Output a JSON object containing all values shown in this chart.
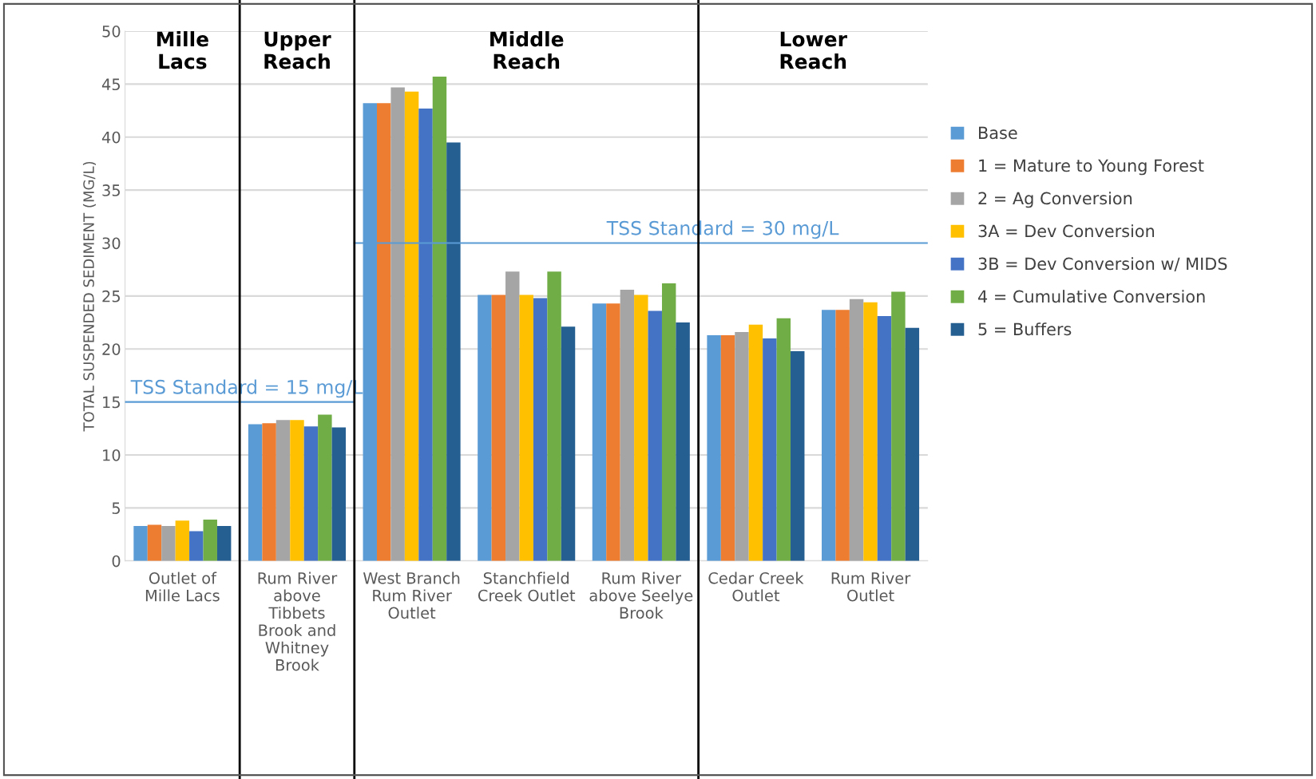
{
  "chart_data": {
    "type": "bar",
    "categories": [
      "Outlet of Mille Lacs",
      "Rum River above Tibbets Brook and Whitney Brook",
      "West Branch Rum River Outlet",
      "Stanchfield Creek Outlet",
      "Rum River above Seelye Brook",
      "Cedar Creek Outlet",
      "Rum River Outlet"
    ],
    "ylabel": "TOTAL SUSPENDED SEDIMENT (MG/L)",
    "series": [
      {
        "name": "Base",
        "color": "#5b9bd5",
        "values": [
          3.3,
          12.9,
          43.2,
          25.1,
          24.3,
          21.3,
          23.7
        ]
      },
      {
        "name": "1 = Mature to Young Forest",
        "color": "#ed7d31",
        "values": [
          3.4,
          13.0,
          43.2,
          25.1,
          24.3,
          21.3,
          23.7
        ]
      },
      {
        "name": "2 = Ag Conversion",
        "color": "#a5a5a5",
        "values": [
          3.3,
          13.3,
          44.7,
          27.3,
          25.6,
          21.6,
          24.7
        ]
      },
      {
        "name": "3A = Dev Conversion",
        "color": "#ffc000",
        "values": [
          3.8,
          13.3,
          44.3,
          25.1,
          25.1,
          22.3,
          24.4
        ]
      },
      {
        "name": "3B = Dev Conversion w/ MIDS",
        "color": "#4472c4",
        "values": [
          2.8,
          12.7,
          42.7,
          24.8,
          23.6,
          21.0,
          23.1
        ]
      },
      {
        "name": "4 = Cumulative Conversion",
        "color": "#70ad47",
        "values": [
          3.9,
          13.8,
          45.7,
          27.3,
          26.2,
          22.9,
          25.4
        ]
      },
      {
        "name": "5 = Buffers",
        "color": "#255e91",
        "values": [
          3.3,
          12.6,
          39.5,
          22.1,
          22.5,
          19.8,
          22.0
        ]
      }
    ],
    "ylim": [
      0,
      50
    ],
    "yticks": [
      0,
      5,
      10,
      15,
      20,
      25,
      30,
      35,
      40,
      45,
      50
    ],
    "ref_lines": [
      {
        "axis": "y",
        "value": 15,
        "label": "TSS Standard = 15 mg/L",
        "color": "#5b9bd5"
      },
      {
        "axis": "y",
        "value": 30,
        "label": "TSS Standard = 30 mg/L",
        "color": "#5b9bd5"
      }
    ],
    "annotations": [
      "Mille Lacs",
      "Upper Reach",
      "Middle Reach",
      "Lower Reach"
    ],
    "grid": "y",
    "legend": "right"
  }
}
